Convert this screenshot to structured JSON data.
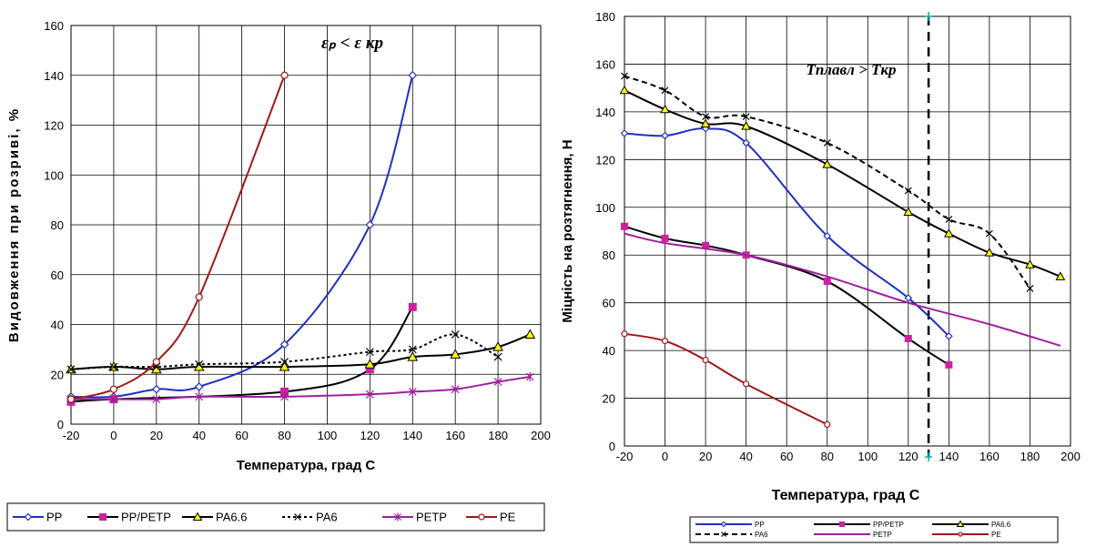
{
  "chart_data": [
    {
      "type": "line",
      "annotation": "εₚ <  ε кр",
      "xlabel": "Температура, град С",
      "ylabel": "Видовження при розриві, %",
      "xlim": [
        -20,
        200
      ],
      "ylim": [
        0,
        160
      ],
      "xticks": [
        -20,
        0,
        20,
        40,
        60,
        80,
        100,
        120,
        140,
        160,
        180,
        200
      ],
      "yticks": [
        0,
        20,
        40,
        60,
        80,
        100,
        120,
        140,
        160
      ],
      "grid": true,
      "legend_position": "bottom",
      "series": [
        {
          "name": "PP",
          "color": "#1f2fbf",
          "dash": "",
          "marker": "diamond",
          "x": [
            -20,
            0,
            20,
            40,
            80,
            120,
            140
          ],
          "y": [
            11,
            11,
            14,
            15,
            32,
            80,
            140
          ]
        },
        {
          "name": "PP/PETP",
          "color": "#000000",
          "dash": "",
          "marker": "square",
          "x": [
            -20,
            0,
            80,
            120,
            140
          ],
          "y": [
            9,
            10,
            13,
            22,
            47
          ]
        },
        {
          "name": "PA6.6",
          "color": "#000000",
          "dash": "",
          "marker": "triangle",
          "x": [
            -20,
            0,
            20,
            40,
            80,
            120,
            140,
            160,
            180,
            195
          ],
          "y": [
            22,
            23,
            22,
            23,
            23,
            24,
            27,
            28,
            31,
            36
          ]
        },
        {
          "name": "PA6",
          "color": "#000000",
          "dash": "3,3",
          "marker": "x",
          "x": [
            -20,
            0,
            20,
            40,
            80,
            120,
            140,
            160,
            180
          ],
          "y": [
            22,
            23,
            23,
            24,
            25,
            29,
            30,
            36,
            27
          ]
        },
        {
          "name": "PETP",
          "color": "#a020a0",
          "dash": "",
          "marker": "asterisk",
          "x": [
            -20,
            0,
            20,
            40,
            80,
            120,
            140,
            160,
            180,
            195
          ],
          "y": [
            10,
            10,
            10,
            11,
            11,
            12,
            13,
            14,
            17,
            19
          ]
        },
        {
          "name": "PE",
          "color": "#a01818",
          "dash": "",
          "marker": "circle",
          "x": [
            -20,
            0,
            20,
            40,
            80
          ],
          "y": [
            10,
            14,
            25,
            51,
            140
          ]
        }
      ]
    },
    {
      "type": "line",
      "annotation": "Tплавл  >  Tкр",
      "xlabel": "Температура, град С",
      "ylabel": "Міцність на розтягнення, Н",
      "xlim": [
        -20,
        200
      ],
      "ylim": [
        0,
        180
      ],
      "xticks": [
        -20,
        0,
        20,
        40,
        60,
        80,
        100,
        120,
        140,
        160,
        180,
        200
      ],
      "yticks": [
        0,
        20,
        40,
        60,
        80,
        100,
        120,
        140,
        160,
        180
      ],
      "grid": true,
      "vertical_line": 130,
      "legend_position": "bottom",
      "series": [
        {
          "name": "PP",
          "color": "#1f2fbf",
          "dash": "",
          "marker": "diamond",
          "x": [
            -20,
            0,
            20,
            40,
            80,
            120,
            140
          ],
          "y": [
            131,
            130,
            133,
            127,
            88,
            62,
            46
          ]
        },
        {
          "name": "PP/PETP",
          "color": "#000000",
          "dash": "",
          "marker": "square",
          "x": [
            -20,
            0,
            20,
            40,
            80,
            120,
            140
          ],
          "y": [
            92,
            87,
            84,
            80,
            69,
            45,
            34
          ]
        },
        {
          "name": "PA6.6",
          "color": "#000000",
          "dash": "",
          "marker": "triangle",
          "x": [
            -20,
            0,
            20,
            40,
            80,
            120,
            140,
            160,
            180,
            195
          ],
          "y": [
            149,
            141,
            135,
            134,
            118,
            98,
            89,
            81,
            76,
            71
          ]
        },
        {
          "name": "PA6",
          "color": "#000000",
          "dash": "6,4",
          "marker": "x",
          "x": [
            -20,
            0,
            20,
            40,
            80,
            120,
            140,
            160,
            180
          ],
          "y": [
            155,
            149,
            138,
            138,
            127,
            107,
            95,
            89,
            66
          ]
        },
        {
          "name": "PETP",
          "color": "#a020a0",
          "dash": "",
          "marker": "none",
          "x": [
            -20,
            0,
            40,
            80,
            120,
            160,
            195
          ],
          "y": [
            89,
            85,
            80,
            71,
            60,
            51,
            42
          ]
        },
        {
          "name": "PE",
          "color": "#a01818",
          "dash": "",
          "marker": "circle",
          "x": [
            -20,
            0,
            20,
            40,
            80
          ],
          "y": [
            47,
            44,
            36,
            26,
            9
          ]
        }
      ]
    }
  ]
}
